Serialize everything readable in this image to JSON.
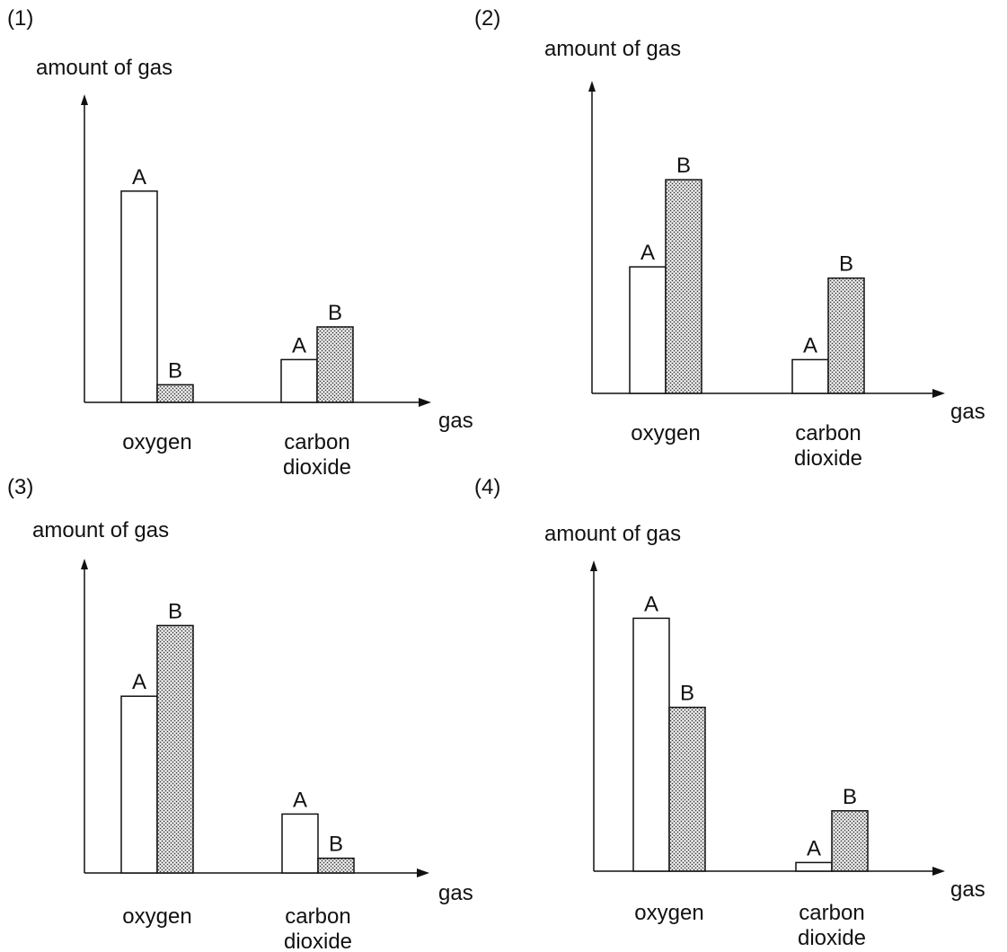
{
  "chart_data": [
    {
      "number": "(1)",
      "type": "bar",
      "ylabel": "amount of gas",
      "xlabel": "gas",
      "categories": [
        [
          "oxygen"
        ],
        [
          "carbon",
          "dioxide"
        ]
      ],
      "series": [
        {
          "name": "A",
          "values": [
            84,
            17
          ]
        },
        {
          "name": "B",
          "values": [
            7,
            30
          ]
        }
      ],
      "ylim": [
        0,
        100
      ]
    },
    {
      "number": "(2)",
      "type": "bar",
      "ylabel": "amount of gas",
      "xlabel": "gas",
      "categories": [
        [
          "oxygen"
        ],
        [
          "carbon",
          "dioxide"
        ]
      ],
      "series": [
        {
          "name": "A",
          "values": [
            45,
            12
          ]
        },
        {
          "name": "B",
          "values": [
            76,
            41
          ]
        }
      ],
      "ylim": [
        0,
        100
      ]
    },
    {
      "number": "(3)",
      "type": "bar",
      "ylabel": "amount of gas",
      "xlabel": "gas",
      "categories": [
        [
          "oxygen"
        ],
        [
          "carbon",
          "dioxide"
        ]
      ],
      "series": [
        {
          "name": "A",
          "values": [
            60,
            20
          ]
        },
        {
          "name": "B",
          "values": [
            84,
            5
          ]
        }
      ],
      "ylim": [
        0,
        100
      ]
    },
    {
      "number": "(4)",
      "type": "bar",
      "ylabel": "amount of gas",
      "xlabel": "gas",
      "categories": [
        [
          "oxygen"
        ],
        [
          "carbon",
          "dioxide"
        ]
      ],
      "series": [
        {
          "name": "A",
          "values": [
            88,
            3
          ]
        },
        {
          "name": "B",
          "values": [
            57,
            21
          ]
        }
      ],
      "ylim": [
        0,
        100
      ]
    }
  ],
  "colors": {
    "series_A_fill": "#ffffff",
    "series_B_fill": "stippled-grey",
    "ink": "#111111"
  }
}
